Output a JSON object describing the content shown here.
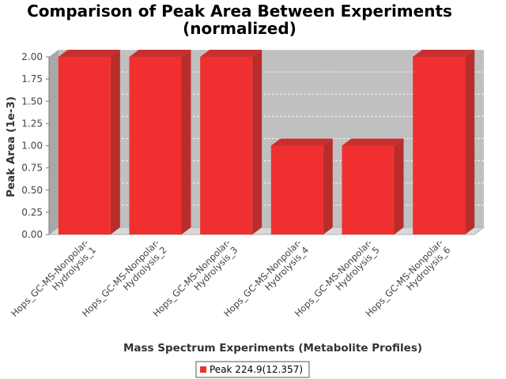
{
  "chart_data": {
    "type": "bar",
    "title_lines": [
      "Comparison of Peak Area Between Experiments",
      "(normalized)"
    ],
    "xlabel": "Mass Spectrum Experiments (Metabolite Profiles)",
    "ylabel": "Peak Area (1e-3)",
    "categories": [
      [
        "Hops_GC-MS-Nonpolar-",
        "Hydrolysis_1"
      ],
      [
        "Hops_GC-MS-Nonpolar-",
        "Hydrolysis_2"
      ],
      [
        "Hops_GC-MS-Nonpolar-",
        "Hydrolysis_3"
      ],
      [
        "Hops_GC-MS-Nonpolar-",
        "Hydrolysis_4"
      ],
      [
        "Hops_GC-MS-Nonpolar-",
        "Hydrolysis_5"
      ],
      [
        "Hops_GC-MS-Nonpolar-",
        "Hydrolysis_6"
      ]
    ],
    "series": [
      {
        "name": "Peak 224.9(12.357)",
        "color": "#f03030",
        "values": [
          2.0,
          2.0,
          2.0,
          1.0,
          1.0,
          2.0
        ]
      }
    ],
    "ylim": [
      0,
      2.0
    ],
    "yticks": [
      "0.00",
      "0.25",
      "0.50",
      "0.75",
      "1.00",
      "1.25",
      "1.50",
      "1.75",
      "2.00"
    ],
    "grid": true,
    "legend_position": "bottom",
    "plot_background": "#c0c0c0"
  }
}
